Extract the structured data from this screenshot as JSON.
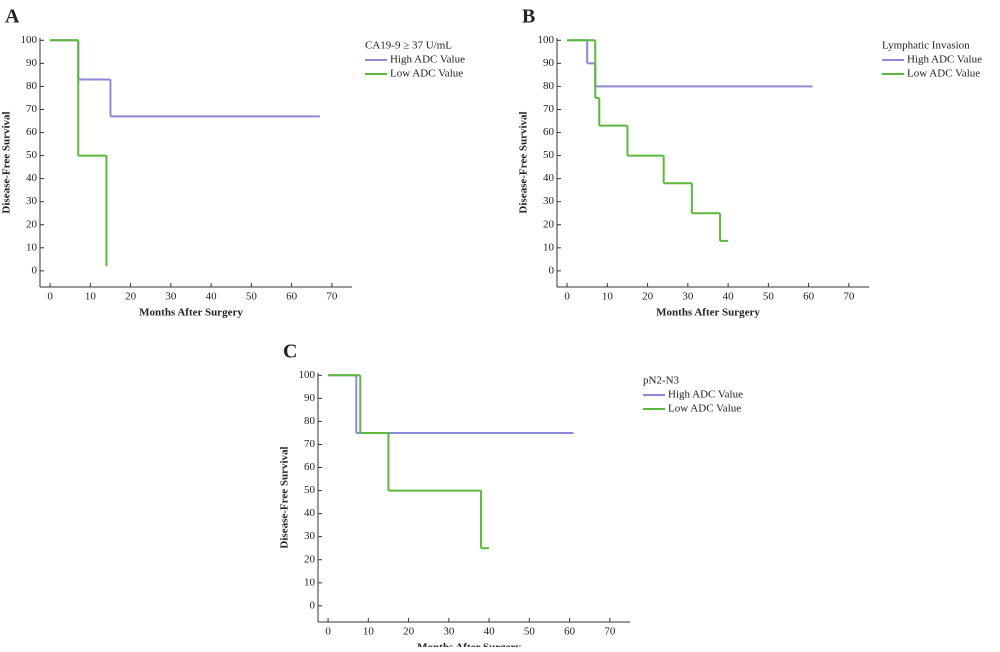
{
  "chart_data": [
    {
      "type": "step",
      "panel_label": "A",
      "xlabel": "Months After Surgery",
      "ylabel": "Disease-Free Survival",
      "legend_title": "CA19-9 ≥ 37 U/mL",
      "xlim": [
        -2.5,
        75
      ],
      "ylim": [
        -7,
        101
      ],
      "xticks": [
        0,
        10,
        20,
        30,
        40,
        50,
        60,
        70
      ],
      "yticks": [
        0,
        10,
        20,
        30,
        40,
        50,
        60,
        70,
        80,
        90,
        100
      ],
      "series": [
        {
          "name": "High ADC Value",
          "color": "#8a8ad8",
          "x": [
            0,
            7,
            15,
            67
          ],
          "values": [
            100,
            83,
            67,
            67
          ]
        },
        {
          "name": "Low ADC Value",
          "color": "#5cb83c",
          "x": [
            0,
            7,
            14
          ],
          "values": [
            100,
            50,
            2
          ]
        }
      ]
    },
    {
      "type": "step",
      "panel_label": "B",
      "xlabel": "Months After Surgery",
      "ylabel": "Disease-Free Survival",
      "legend_title": "Lymphatic Invasion",
      "xlim": [
        -2.5,
        75
      ],
      "ylim": [
        -7,
        101
      ],
      "xticks": [
        0,
        10,
        20,
        30,
        40,
        50,
        60,
        70
      ],
      "yticks": [
        0,
        10,
        20,
        30,
        40,
        50,
        60,
        70,
        80,
        90,
        100
      ],
      "series": [
        {
          "name": "High ADC Value",
          "color": "#8a8ad8",
          "x": [
            0,
            5,
            7,
            61
          ],
          "values": [
            100,
            90,
            80,
            80
          ]
        },
        {
          "name": "Low ADC Value",
          "color": "#5cb83c",
          "x": [
            0,
            7,
            8,
            15,
            24,
            31,
            38,
            40
          ],
          "values": [
            100,
            75,
            63,
            50,
            38,
            25,
            13,
            13
          ]
        }
      ]
    },
    {
      "type": "step",
      "panel_label": "C",
      "xlabel": "Months After Surgery",
      "ylabel": "Disease-Free Survival",
      "legend_title": "pN2-N3",
      "xlim": [
        -2.5,
        75
      ],
      "ylim": [
        -7,
        101
      ],
      "xticks": [
        0,
        10,
        20,
        30,
        40,
        50,
        60,
        70
      ],
      "yticks": [
        0,
        10,
        20,
        30,
        40,
        50,
        60,
        70,
        80,
        90,
        100
      ],
      "series": [
        {
          "name": "High ADC Value",
          "color": "#8a8ad8",
          "x": [
            0,
            7,
            61
          ],
          "values": [
            100,
            75,
            75
          ]
        },
        {
          "name": "Low ADC Value",
          "color": "#5cb83c",
          "x": [
            0,
            8,
            15,
            38,
            40
          ],
          "values": [
            100,
            75,
            50,
            25,
            25
          ]
        }
      ]
    }
  ]
}
